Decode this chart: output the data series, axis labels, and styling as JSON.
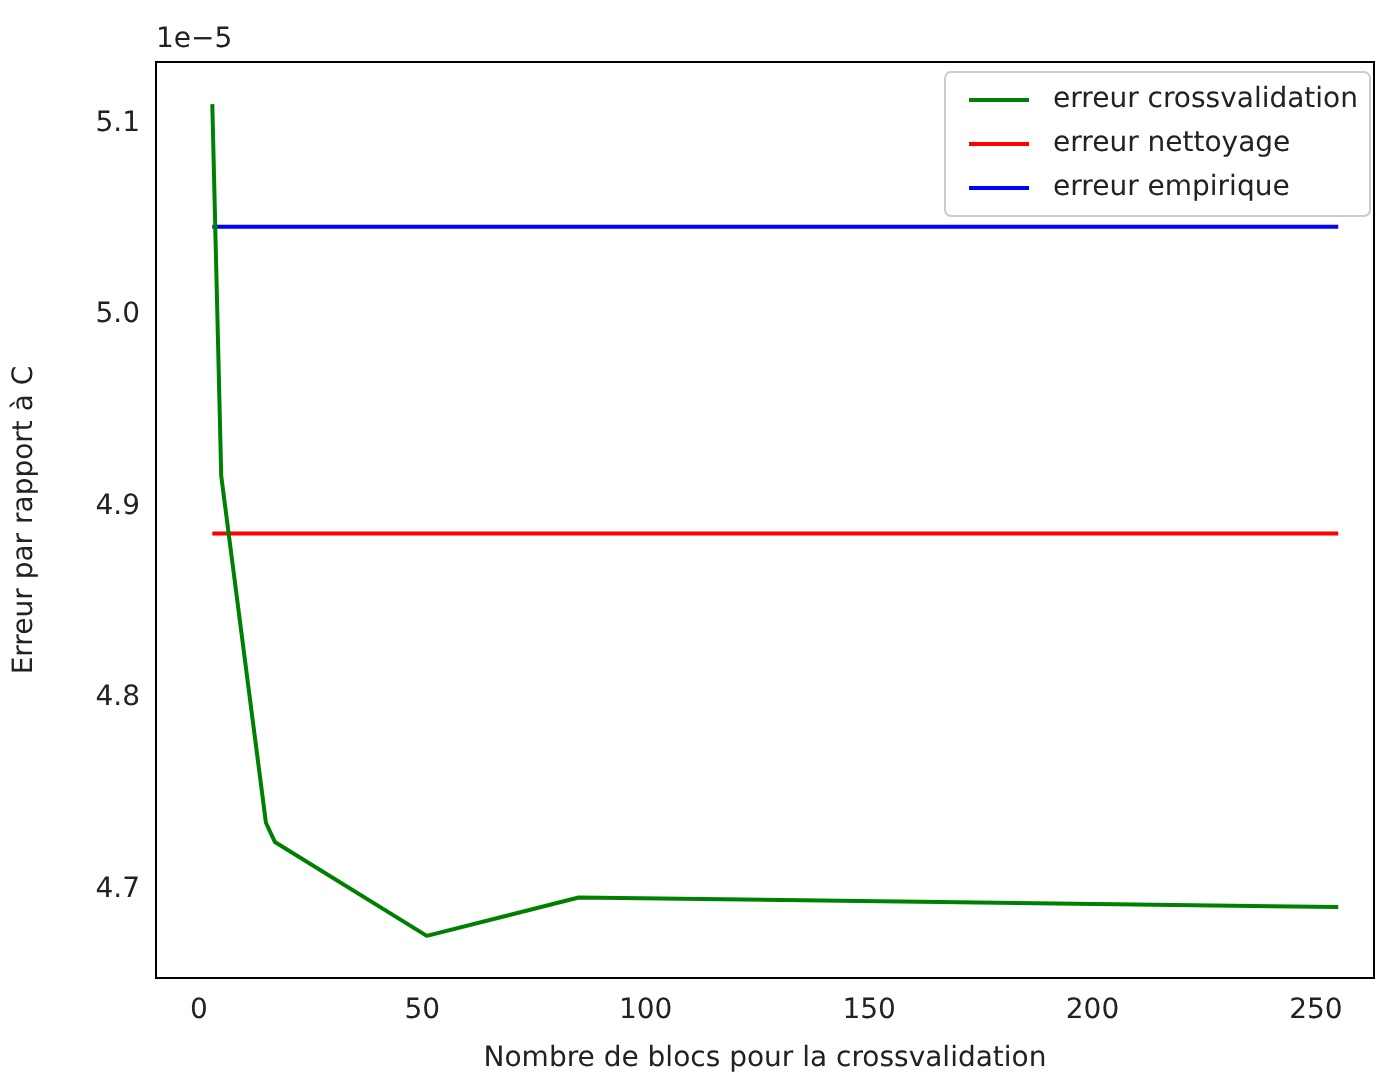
{
  "chart_data": {
    "type": "line",
    "xlabel": "Nombre de blocs pour la crossvalidation",
    "ylabel": "Erreur par rapport à C",
    "annotations": [
      "1e−5"
    ],
    "series": [
      {
        "name": "erreur crossvalidation",
        "color": "#008000",
        "x": [
          3,
          5,
          15,
          17,
          51,
          85,
          255
        ],
        "values": [
          5.11,
          4.916,
          4.735,
          4.725,
          4.676,
          4.696,
          4.691
        ]
      },
      {
        "name": "erreur nettoyage",
        "color": "#ff0000",
        "x": [
          3,
          255
        ],
        "values": [
          4.886,
          4.886
        ]
      },
      {
        "name": "erreur empirique",
        "color": "#0000ff",
        "x": [
          3,
          255
        ],
        "values": [
          5.046,
          5.046
        ]
      }
    ],
    "xlim": [
      -9.6,
      263
    ],
    "ylim": [
      4.654,
      5.132
    ],
    "xticks": [
      0,
      50,
      100,
      150,
      200,
      250
    ],
    "yticks": [
      4.7,
      4.8,
      4.9,
      {
        "value": 5,
        "label": "5.0"
      },
      5.1
    ],
    "legend": "top right",
    "grid": false,
    "marker": "none"
  }
}
